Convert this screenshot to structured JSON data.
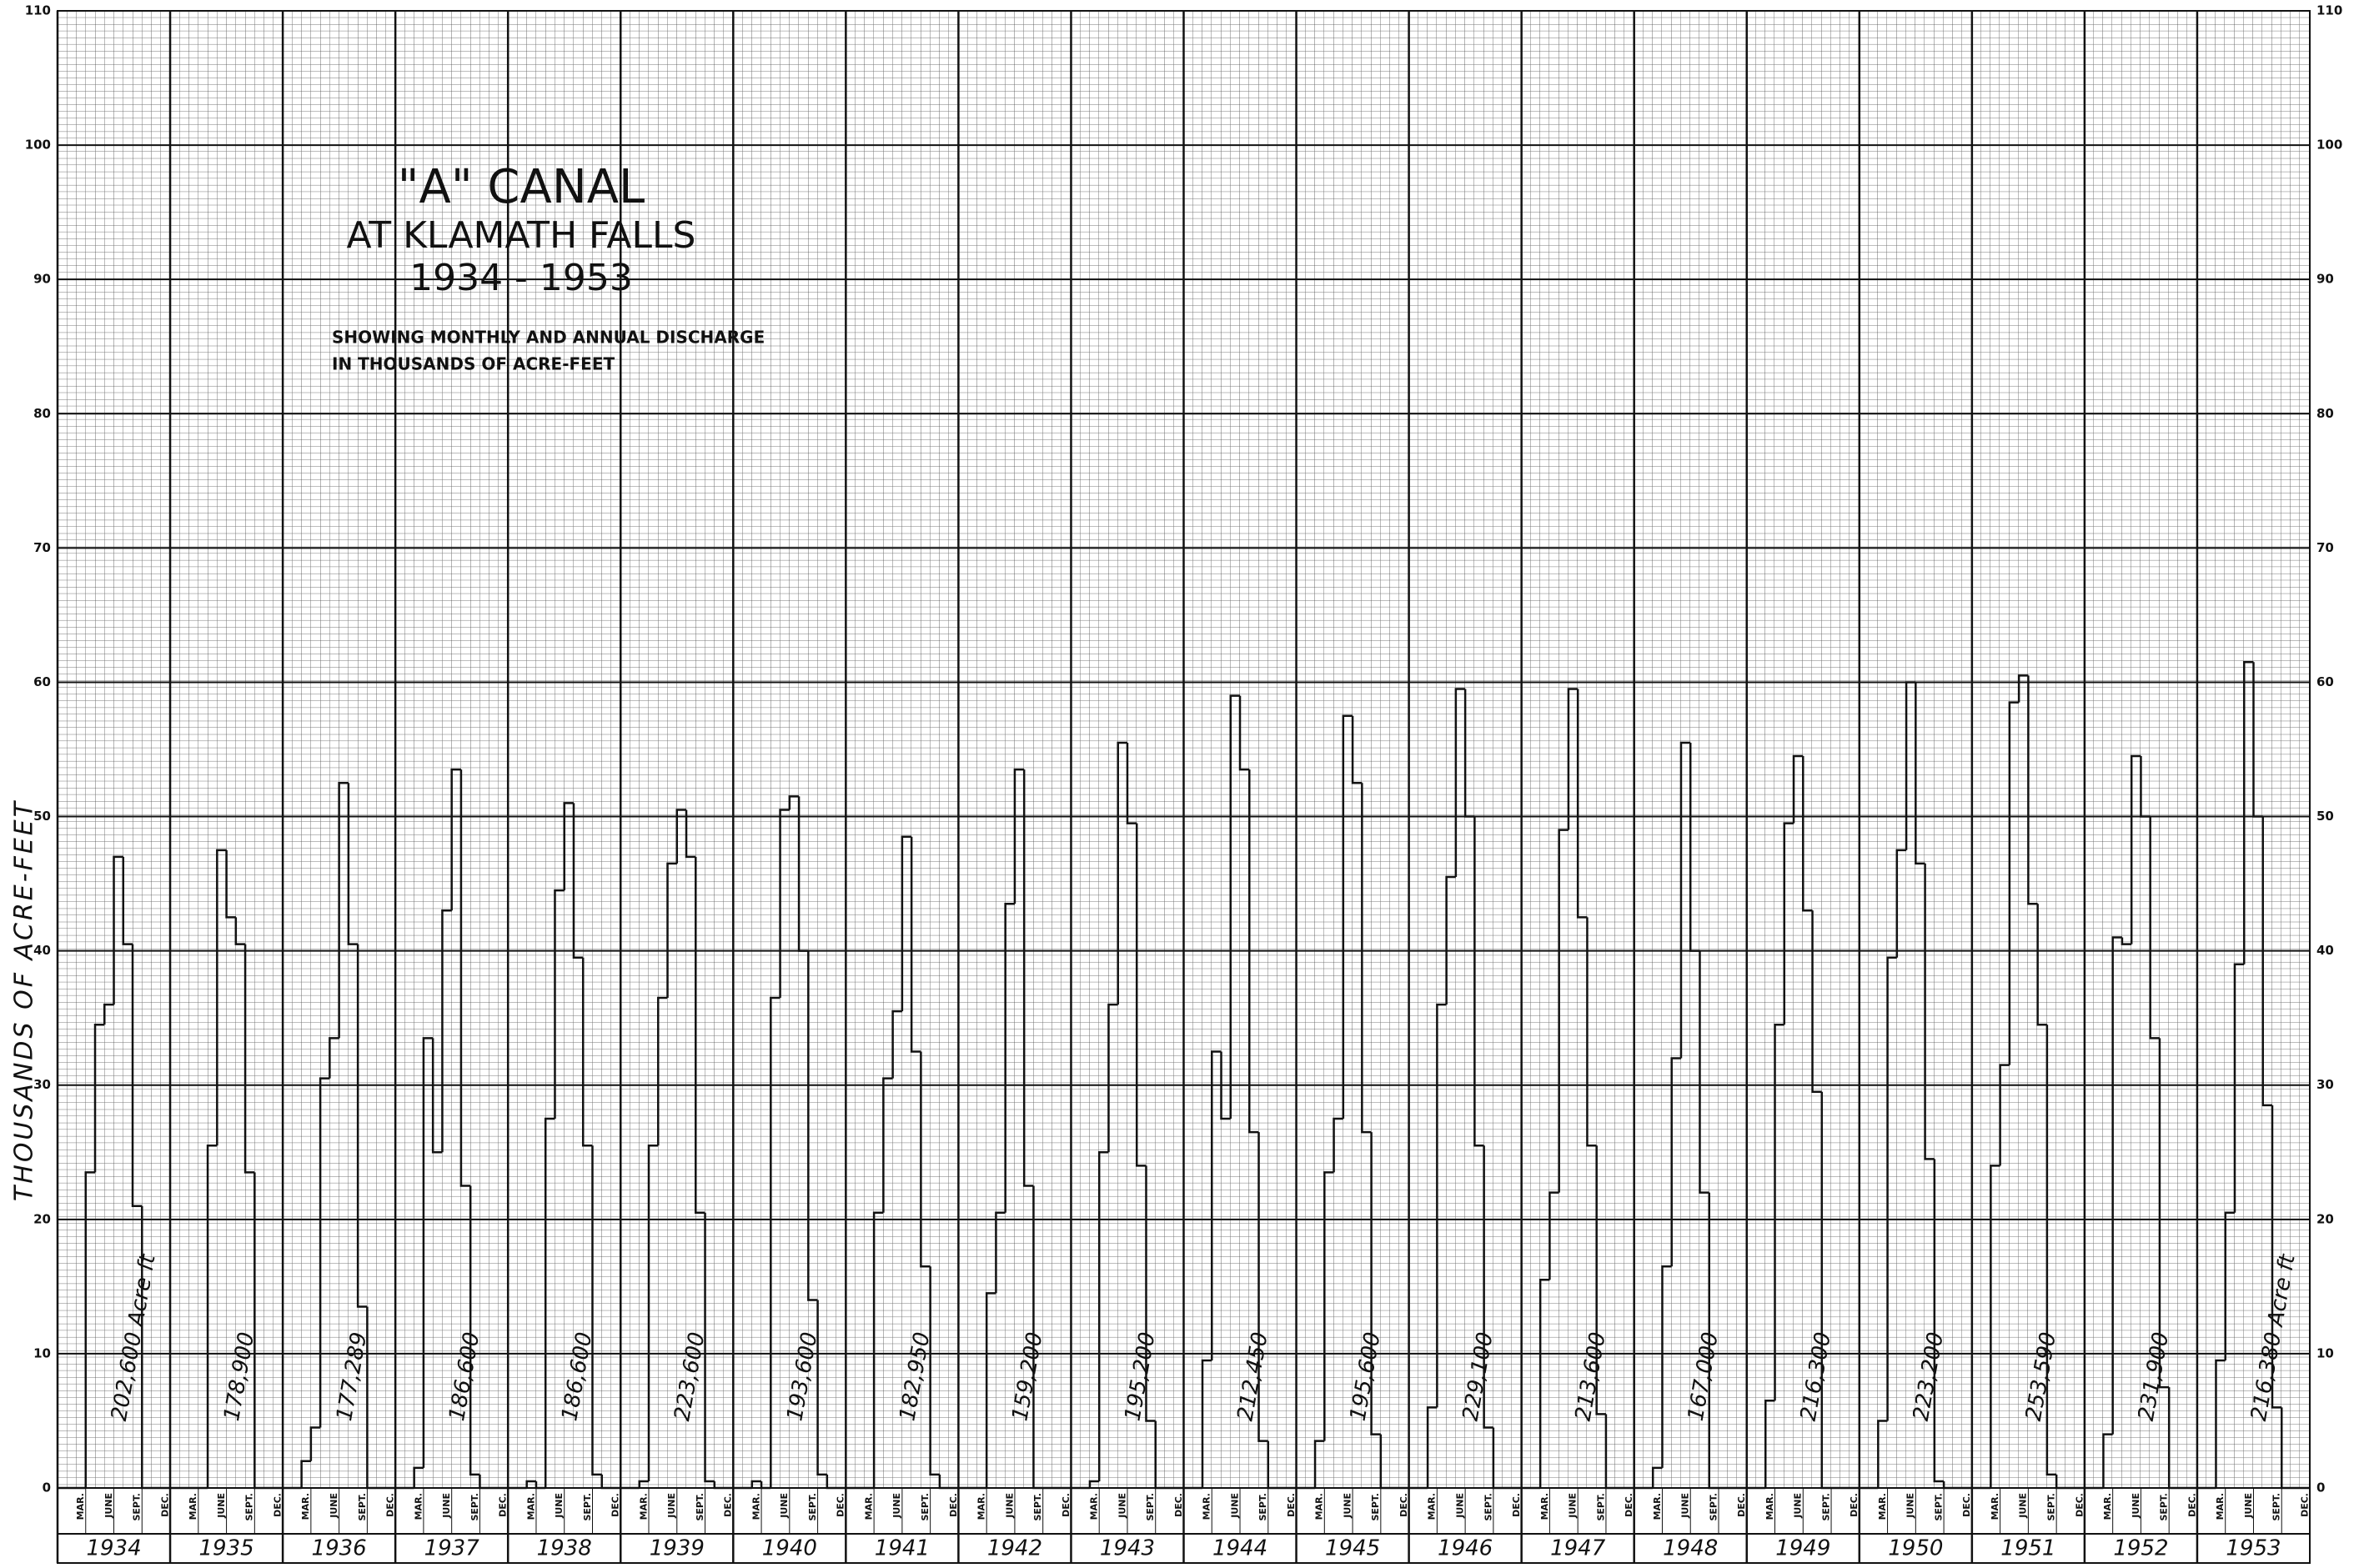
{
  "chart_data": {
    "type": "step",
    "title": "\"A\" CANAL",
    "subtitle": [
      "AT KLAMATH FALLS",
      "1934 - 1953"
    ],
    "notes": [
      "SHOWING MONTHLY AND ANNUAL DISCHARGE",
      "IN THOUSANDS OF ACRE-FEET"
    ],
    "ylabel": "THOUSANDS OF ACRE-FEET",
    "ylim": [
      0,
      110
    ],
    "yticks": [
      0,
      10,
      20,
      30,
      40,
      50,
      60,
      70,
      80,
      90,
      100,
      110
    ],
    "grid": true,
    "color": "#111",
    "month_labels": [
      "MAR.",
      "JUNE",
      "SEPT.",
      "DEC."
    ],
    "years": [
      {
        "label": "1934",
        "total": "202,600 Acre ft",
        "values": [
          0,
          0,
          0,
          23.5,
          34.5,
          36,
          47,
          40.5,
          21,
          0,
          0,
          0
        ]
      },
      {
        "label": "1935",
        "total": "178,900",
        "values": [
          0,
          0,
          0,
          0,
          25.5,
          47.5,
          42.5,
          40.5,
          23.5,
          0,
          0,
          0
        ]
      },
      {
        "label": "1936",
        "total": "177,289",
        "values": [
          0,
          0,
          2,
          4.5,
          30.5,
          33.5,
          52.5,
          40.5,
          13.5,
          0,
          0,
          0
        ]
      },
      {
        "label": "1937",
        "total": "186,600",
        "values": [
          0,
          0,
          1.5,
          33.5,
          25,
          43,
          53.5,
          22.5,
          1,
          0,
          0,
          0
        ]
      },
      {
        "label": "1938",
        "total": "186,600",
        "values": [
          0,
          0,
          0.5,
          0,
          27.5,
          44.5,
          51,
          39.5,
          25.5,
          1,
          0,
          0
        ]
      },
      {
        "label": "1939",
        "total": "223,600",
        "values": [
          0,
          0,
          0.5,
          25.5,
          36.5,
          46.5,
          50.5,
          47,
          20.5,
          0.5,
          0,
          0
        ]
      },
      {
        "label": "1940",
        "total": "193,600",
        "values": [
          0,
          0,
          0.5,
          0,
          36.5,
          50.5,
          51.5,
          40,
          14,
          1,
          0,
          0
        ]
      },
      {
        "label": "1941",
        "total": "182,950",
        "values": [
          0,
          0,
          0,
          20.5,
          30.5,
          35.5,
          48.5,
          32.5,
          16.5,
          1,
          0,
          0
        ]
      },
      {
        "label": "1942",
        "total": "159,200",
        "values": [
          0,
          0,
          0,
          14.5,
          20.5,
          43.5,
          53.5,
          22.5,
          0,
          0,
          0,
          0
        ]
      },
      {
        "label": "1943",
        "total": "195,200",
        "values": [
          0,
          0,
          0.5,
          25,
          36,
          55.5,
          49.5,
          24,
          5,
          0,
          0,
          0
        ]
      },
      {
        "label": "1944",
        "total": "212,450",
        "values": [
          0,
          0,
          9.5,
          32.5,
          27.5,
          59,
          53.5,
          26.5,
          3.5,
          0,
          0,
          0
        ]
      },
      {
        "label": "1945",
        "total": "195,600",
        "values": [
          0,
          0,
          3.5,
          23.5,
          27.5,
          57.5,
          52.5,
          26.5,
          4,
          0,
          0,
          0
        ]
      },
      {
        "label": "1946",
        "total": "229,100",
        "values": [
          0,
          0,
          6,
          36,
          45.5,
          59.5,
          50,
          25.5,
          4.5,
          0,
          0,
          0
        ]
      },
      {
        "label": "1947",
        "total": "213,600",
        "values": [
          0,
          0,
          15.5,
          22,
          49,
          59.5,
          42.5,
          25.5,
          5.5,
          0,
          0,
          0
        ]
      },
      {
        "label": "1948",
        "total": "167,000",
        "values": [
          0,
          0,
          1.5,
          16.5,
          32,
          55.5,
          40,
          22,
          0,
          0,
          0,
          0
        ]
      },
      {
        "label": "1949",
        "total": "216,300",
        "values": [
          0,
          0,
          6.5,
          34.5,
          49.5,
          54.5,
          43,
          29.5,
          0,
          0,
          0,
          0
        ]
      },
      {
        "label": "1950",
        "total": "223,200",
        "values": [
          0,
          0,
          5,
          39.5,
          47.5,
          60,
          46.5,
          24.5,
          0.5,
          0,
          0,
          0
        ]
      },
      {
        "label": "1951",
        "total": "253,590",
        "values": [
          0,
          0,
          24,
          31.5,
          58.5,
          60.5,
          43.5,
          34.5,
          1,
          0,
          0,
          0
        ]
      },
      {
        "label": "1952",
        "total": "231,900",
        "values": [
          0,
          0,
          4,
          41,
          40.5,
          54.5,
          50,
          33.5,
          7.5,
          0,
          0,
          0
        ]
      },
      {
        "label": "1953",
        "total": "216,380 Acre ft",
        "values": [
          0,
          0,
          9.5,
          20.5,
          39,
          61.5,
          50,
          28.5,
          6,
          0,
          0,
          0
        ]
      }
    ]
  }
}
